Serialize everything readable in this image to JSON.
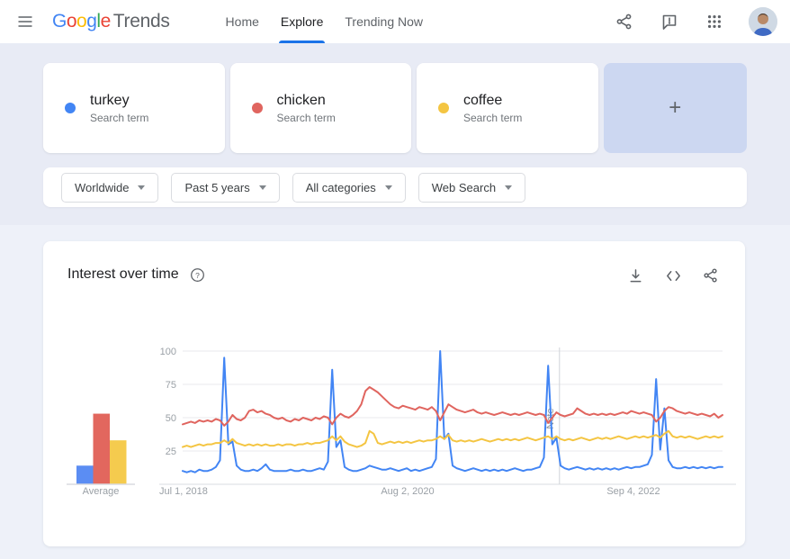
{
  "header": {
    "logo": {
      "letters": [
        {
          "ch": "G",
          "color": "#4285F4"
        },
        {
          "ch": "o",
          "color": "#EA4335"
        },
        {
          "ch": "o",
          "color": "#FBBC05"
        },
        {
          "ch": "g",
          "color": "#4285F4"
        },
        {
          "ch": "l",
          "color": "#34A853"
        },
        {
          "ch": "e",
          "color": "#EA4335"
        }
      ],
      "product": "Trends"
    },
    "nav": [
      {
        "label": "Home",
        "active": false
      },
      {
        "label": "Explore",
        "active": true
      },
      {
        "label": "Trending Now",
        "active": false
      }
    ],
    "icons": [
      "share",
      "feedback",
      "apps",
      "account-avatar"
    ]
  },
  "comparison": {
    "terms": [
      {
        "name": "turkey",
        "type_label": "Search term",
        "color": "#4285f4"
      },
      {
        "name": "chicken",
        "type_label": "Search term",
        "color": "#e0655f"
      },
      {
        "name": "coffee",
        "type_label": "Search term",
        "color": "#f4c542"
      }
    ],
    "add_label": "+"
  },
  "filters": [
    {
      "label": "Worldwide"
    },
    {
      "label": "Past 5 years"
    },
    {
      "label": "All categories"
    },
    {
      "label": "Web Search"
    }
  ],
  "chart": {
    "title": "Interest over time",
    "actions": [
      "download",
      "embed",
      "share"
    ]
  },
  "chart_data": {
    "type": "line",
    "title": "Interest over time",
    "x_axis": {
      "ticks": [
        "Jul 1, 2018",
        "Aug 2, 2020",
        "Sep 4, 2022"
      ]
    },
    "ylim": [
      0,
      100
    ],
    "yticks": [
      25,
      50,
      75,
      100
    ],
    "grid": "horizontal",
    "frequency": "approx. biweekly over past 5 years",
    "note_marker": {
      "label": "Note",
      "x_frac": 0.698
    },
    "series": [
      {
        "name": "turkey",
        "color": "#4285f4",
        "values": [
          10,
          9,
          10,
          9,
          11,
          10,
          10,
          11,
          13,
          18,
          95,
          30,
          32,
          14,
          11,
          10,
          10,
          11,
          10,
          12,
          15,
          11,
          10,
          10,
          10,
          10,
          11,
          10,
          10,
          11,
          10,
          10,
          11,
          12,
          11,
          17,
          86,
          28,
          33,
          13,
          11,
          10,
          10,
          11,
          12,
          14,
          13,
          12,
          11,
          11,
          12,
          11,
          10,
          11,
          12,
          10,
          11,
          10,
          11,
          12,
          13,
          19,
          100,
          34,
          38,
          14,
          12,
          11,
          10,
          11,
          12,
          11,
          10,
          11,
          10,
          11,
          10,
          11,
          10,
          11,
          12,
          11,
          10,
          11,
          11,
          12,
          13,
          20,
          89,
          30,
          35,
          14,
          12,
          11,
          12,
          13,
          12,
          11,
          12,
          11,
          12,
          11,
          12,
          11,
          12,
          11,
          12,
          13,
          12,
          13,
          13,
          14,
          15,
          22,
          79,
          26,
          57,
          18,
          13,
          12,
          12,
          13,
          12,
          13,
          12,
          13,
          12,
          13,
          12,
          13,
          13
        ]
      },
      {
        "name": "chicken",
        "color": "#e0655f",
        "values": [
          45,
          46,
          47,
          46,
          48,
          47,
          48,
          47,
          49,
          48,
          44,
          47,
          52,
          49,
          48,
          50,
          55,
          56,
          54,
          55,
          53,
          52,
          50,
          49,
          50,
          48,
          47,
          49,
          48,
          50,
          49,
          48,
          50,
          49,
          51,
          50,
          45,
          50,
          53,
          51,
          50,
          52,
          55,
          60,
          70,
          73,
          71,
          69,
          66,
          63,
          60,
          58,
          57,
          59,
          58,
          57,
          56,
          58,
          57,
          56,
          58,
          55,
          48,
          54,
          60,
          58,
          56,
          55,
          54,
          55,
          56,
          54,
          53,
          54,
          53,
          52,
          53,
          54,
          53,
          52,
          53,
          52,
          53,
          54,
          53,
          52,
          53,
          52,
          46,
          50,
          54,
          52,
          51,
          52,
          53,
          57,
          55,
          53,
          52,
          53,
          52,
          53,
          52,
          53,
          52,
          53,
          54,
          53,
          55,
          54,
          53,
          54,
          53,
          52,
          47,
          50,
          55,
          58,
          57,
          55,
          54,
          53,
          54,
          53,
          52,
          53,
          52,
          51,
          53,
          50,
          52
        ]
      },
      {
        "name": "coffee",
        "color": "#f4c542",
        "values": [
          28,
          29,
          28,
          29,
          30,
          29,
          30,
          30,
          31,
          31,
          33,
          31,
          34,
          31,
          30,
          29,
          30,
          29,
          30,
          29,
          30,
          29,
          29,
          30,
          29,
          30,
          30,
          29,
          30,
          30,
          31,
          30,
          31,
          31,
          32,
          33,
          36,
          33,
          36,
          32,
          30,
          29,
          28,
          29,
          31,
          40,
          38,
          31,
          30,
          31,
          32,
          31,
          32,
          31,
          32,
          31,
          32,
          33,
          32,
          33,
          33,
          34,
          36,
          34,
          37,
          33,
          32,
          33,
          32,
          33,
          32,
          33,
          34,
          33,
          32,
          33,
          34,
          33,
          34,
          33,
          34,
          33,
          34,
          35,
          34,
          33,
          34,
          35,
          36,
          34,
          36,
          34,
          33,
          34,
          33,
          34,
          35,
          34,
          33,
          34,
          35,
          34,
          35,
          34,
          35,
          36,
          35,
          34,
          35,
          36,
          35,
          36,
          35,
          36,
          37,
          35,
          38,
          40,
          36,
          35,
          36,
          35,
          36,
          35,
          34,
          35,
          36,
          35,
          36,
          35,
          36
        ]
      }
    ],
    "averages": {
      "label": "Average",
      "categories": [
        "turkey",
        "chicken",
        "coffee"
      ],
      "values": [
        14,
        53,
        33
      ],
      "colors": [
        "#5b8df3",
        "#e2675e",
        "#f5cb4e"
      ]
    }
  }
}
